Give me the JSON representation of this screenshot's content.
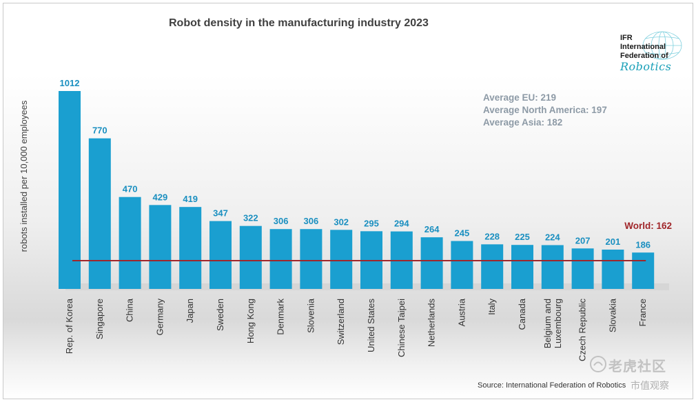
{
  "chart_data": {
    "type": "bar",
    "title": "Robot density in the manufacturing industry 2023",
    "ylabel": "robots installed per 10,000 employees",
    "xlabel": "",
    "ylim": [
      0,
      1012
    ],
    "categories": [
      "Rep. of Korea",
      "Singapore",
      "China",
      "Germany",
      "Japan",
      "Sweden",
      "Hong Kong",
      "Denmark",
      "Slovenia",
      "Switzerland",
      "United States",
      "Chinese Taipei",
      "Netherlands",
      "Austria",
      "Italy",
      "Canada",
      "Belgium and Luxembourg",
      "Czech Republic",
      "Slovakia",
      "France"
    ],
    "values": [
      1012,
      770,
      470,
      429,
      419,
      347,
      322,
      306,
      306,
      302,
      295,
      294,
      264,
      245,
      228,
      225,
      224,
      207,
      201,
      186
    ],
    "reference_line": {
      "label": "World: 162",
      "value": 162,
      "color": "#a0262a"
    },
    "bar_color": "#1a9fd0",
    "label_color": "#1a8fc0"
  },
  "averages": [
    "Average EU: 219",
    "Average North America: 197",
    "Average Asia: 182"
  ],
  "logo": {
    "line1": "IFR",
    "line2": "International",
    "line3": "Federation of",
    "line4": "Robotics"
  },
  "source": "Source: International Federation of Robotics",
  "watermark": {
    "line1": "老虎社区",
    "line2": "市值观察"
  }
}
